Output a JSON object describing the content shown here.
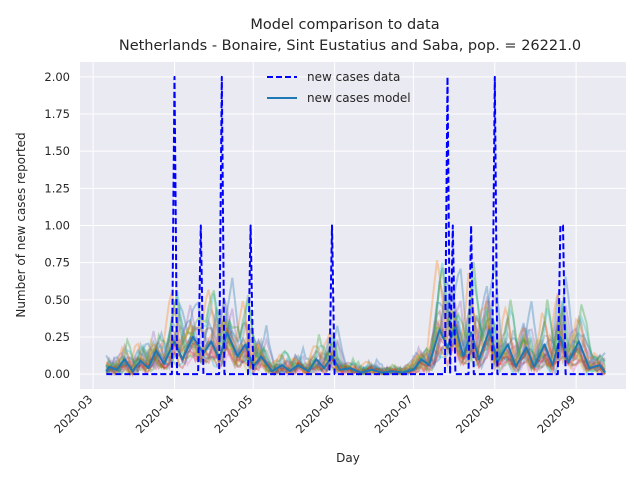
{
  "chart_data": {
    "type": "line",
    "title": "Model comparison to data",
    "subtitle": "Netherlands - Bonaire, Sint Eustatius and Saba, pop. = 26221.0",
    "xlabel": "Day",
    "ylabel": "Number of new cases reported",
    "xlim": [
      "2020-02-25",
      "2020-09-20"
    ],
    "ylim": [
      -0.1,
      2.1
    ],
    "x_ticks": [
      "2020-03",
      "2020-04",
      "2020-05",
      "2020-06",
      "2020-07",
      "2020-08",
      "2020-09"
    ],
    "y_ticks": [
      "0.00",
      "0.25",
      "0.50",
      "0.75",
      "1.00",
      "1.25",
      "1.50",
      "1.75",
      "2.00"
    ],
    "grid": true,
    "legend_position": "top-center",
    "series": [
      {
        "name": "new cases data",
        "style": "dashed",
        "color": "#0000ff",
        "points": [
          [
            "2020-03-06",
            0
          ],
          [
            "2020-03-31",
            0
          ],
          [
            "2020-04-01",
            2
          ],
          [
            "2020-04-02",
            0
          ],
          [
            "2020-04-10",
            0
          ],
          [
            "2020-04-11",
            1
          ],
          [
            "2020-04-12",
            0
          ],
          [
            "2020-04-18",
            0
          ],
          [
            "2020-04-19",
            2
          ],
          [
            "2020-04-20",
            0
          ],
          [
            "2020-04-29",
            0
          ],
          [
            "2020-04-30",
            1
          ],
          [
            "2020-05-01",
            0
          ],
          [
            "2020-05-30",
            0
          ],
          [
            "2020-05-31",
            1
          ],
          [
            "2020-06-01",
            0
          ],
          [
            "2020-07-13",
            0
          ],
          [
            "2020-07-14",
            2
          ],
          [
            "2020-07-15",
            0
          ],
          [
            "2020-07-16",
            1
          ],
          [
            "2020-07-17",
            0
          ],
          [
            "2020-07-22",
            0
          ],
          [
            "2020-07-23",
            1
          ],
          [
            "2020-07-24",
            0
          ],
          [
            "2020-07-31",
            0
          ],
          [
            "2020-08-01",
            2
          ],
          [
            "2020-08-02",
            0
          ],
          [
            "2020-08-25",
            0
          ],
          [
            "2020-08-26",
            1
          ],
          [
            "2020-08-27",
            1
          ],
          [
            "2020-08-28",
            0
          ],
          [
            "2020-09-11",
            0
          ]
        ]
      },
      {
        "name": "new cases model",
        "style": "solid",
        "color": "#1f77b4",
        "points": [
          [
            "2020-03-06",
            0.02
          ],
          [
            "2020-03-07",
            0.05
          ],
          [
            "2020-03-10",
            0.03
          ],
          [
            "2020-03-13",
            0.1
          ],
          [
            "2020-03-16",
            0.02
          ],
          [
            "2020-03-19",
            0.09
          ],
          [
            "2020-03-22",
            0.04
          ],
          [
            "2020-03-25",
            0.16
          ],
          [
            "2020-03-28",
            0.07
          ],
          [
            "2020-04-01",
            0.22
          ],
          [
            "2020-04-04",
            0.1
          ],
          [
            "2020-04-08",
            0.25
          ],
          [
            "2020-04-12",
            0.14
          ],
          [
            "2020-04-15",
            0.22
          ],
          [
            "2020-04-18",
            0.1
          ],
          [
            "2020-04-21",
            0.28
          ],
          [
            "2020-04-25",
            0.12
          ],
          [
            "2020-04-28",
            0.2
          ],
          [
            "2020-05-01",
            0.05
          ],
          [
            "2020-05-04",
            0.12
          ],
          [
            "2020-05-08",
            0.02
          ],
          [
            "2020-05-12",
            0.06
          ],
          [
            "2020-05-15",
            0.02
          ],
          [
            "2020-05-18",
            0.06
          ],
          [
            "2020-05-22",
            0.02
          ],
          [
            "2020-05-25",
            0.1
          ],
          [
            "2020-05-28",
            0.04
          ],
          [
            "2020-05-31",
            0.12
          ],
          [
            "2020-06-03",
            0.03
          ],
          [
            "2020-06-07",
            0.04
          ],
          [
            "2020-06-11",
            0.01
          ],
          [
            "2020-06-15",
            0.03
          ],
          [
            "2020-06-19",
            0.01
          ],
          [
            "2020-06-23",
            0.02
          ],
          [
            "2020-06-27",
            0.01
          ],
          [
            "2020-07-01",
            0.03
          ],
          [
            "2020-07-04",
            0.1
          ],
          [
            "2020-07-07",
            0.06
          ],
          [
            "2020-07-11",
            0.3
          ],
          [
            "2020-07-14",
            0.18
          ],
          [
            "2020-07-17",
            0.32
          ],
          [
            "2020-07-20",
            0.12
          ],
          [
            "2020-07-23",
            0.28
          ],
          [
            "2020-07-26",
            0.1
          ],
          [
            "2020-07-30",
            0.3
          ],
          [
            "2020-08-02",
            0.08
          ],
          [
            "2020-08-06",
            0.2
          ],
          [
            "2020-08-09",
            0.05
          ],
          [
            "2020-08-13",
            0.18
          ],
          [
            "2020-08-16",
            0.05
          ],
          [
            "2020-08-20",
            0.2
          ],
          [
            "2020-08-23",
            0.06
          ],
          [
            "2020-08-26",
            0.25
          ],
          [
            "2020-08-29",
            0.08
          ],
          [
            "2020-09-02",
            0.22
          ],
          [
            "2020-09-06",
            0.04
          ],
          [
            "2020-09-10",
            0.06
          ],
          [
            "2020-09-12",
            0.01
          ]
        ]
      }
    ]
  },
  "ensemble_colors": [
    "#1f77b4",
    "#ff7f0e",
    "#2ca02c",
    "#d62728",
    "#9467bd",
    "#8c564b",
    "#e377c2",
    "#7f7f7f",
    "#bcbd22",
    "#17becf"
  ]
}
